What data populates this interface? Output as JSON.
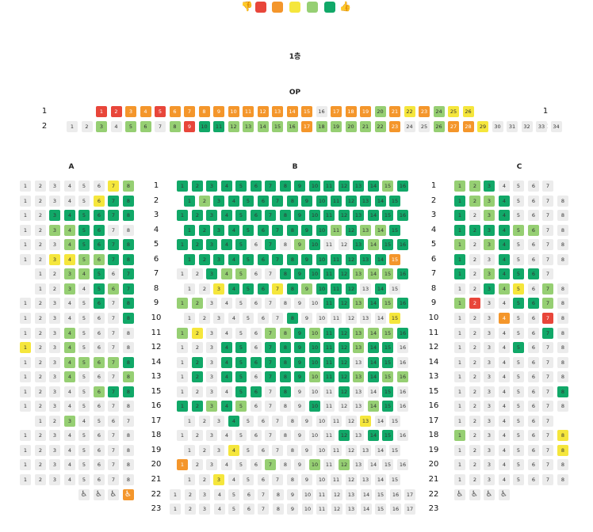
{
  "colors": {
    "0": "#ececec",
    "1": "#e8463a",
    "2": "#f4962b",
    "3": "#f5e63c",
    "4": "#96cf73",
    "5": "#11a868"
  },
  "legend": {
    "low_icon": "thumbs-down-icon",
    "high_icon": "thumbs-up-icon",
    "levels": [
      1,
      2,
      3,
      4,
      5
    ]
  },
  "floor_title": "1층",
  "op": {
    "title": "OP",
    "rows": [
      {
        "label": "1",
        "x0": 121,
        "seats": "11221222222222202224232433"
      },
      {
        "label": "2",
        "x0": 84,
        "seats": "0040440415544444244444200422300000"
      }
    ]
  },
  "sections": {
    "A": {
      "title": "A",
      "x0": 25
    },
    "B": {
      "title": "B",
      "x0": 223
    },
    "C": {
      "title": "C",
      "x0": 573
    }
  },
  "rows": [
    {
      "label": "1",
      "A": "00000034",
      "B": "5555555555555545",
      "C": "4450000"
    },
    {
      "label": "2",
      "A": "00000355",
      "B": "545555555555555",
      "C": "54450000"
    },
    {
      "label": "3",
      "A": "00555555",
      "B": "5555555555555555",
      "C": "50450000"
    },
    {
      "label": "4",
      "A": "00445500",
      "B": "555555555545445",
      "C": "55554400"
    },
    {
      "label": "5",
      "A": "00045555",
      "B": "5555505045005455",
      "C": "40450000"
    },
    {
      "label": "6",
      "A": "00334455",
      "B": "555555555555552",
      "C": "50050000"
    },
    {
      "label": "7",
      "A": "0044505",
      "B": "0054400555554445",
      "C": "5045550"
    },
    {
      "label": "8",
      "A": "0040545",
      "B": "003555354555050",
      "C": "00543040"
    },
    {
      "label": "9",
      "A": "00000505",
      "B": "4400000000554545",
      "C": "41005540"
    },
    {
      "label": "10",
      "A": "00000005",
      "B": "000000050000003",
      "C": "00020010"
    },
    {
      "label": "11",
      "A": "00040000",
      "B": "4300004454554445",
      "C": "00000050"
    },
    {
      "label": "12",
      "A": "30040000",
      "B": "0005505555554550",
      "C": "00005000"
    },
    {
      "label": "14",
      "A": "00044445",
      "B": "0505555555550550",
      "C": "00000000"
    },
    {
      "label": "13",
      "A": "00040004",
      "B": "0505505554554544",
      "C": "00000000"
    },
    {
      "label": "15",
      "A": "00000455",
      "B": "0000550500050050",
      "C": "00000005"
    },
    {
      "label": "16",
      "A": "00000000",
      "B": "5545400005000450",
      "C": "00000000"
    },
    {
      "label": "17",
      "A": "0040000",
      "B": "000500000000300",
      "C": "0000000"
    },
    {
      "label": "18",
      "A": "00000000",
      "B": "0000000000050550",
      "C": "40000003"
    },
    {
      "label": "19",
      "A": "00000000",
      "B": "000300000000000",
      "C": "00000003"
    },
    {
      "label": "20",
      "A": "00000000",
      "B": "2000004004040000",
      "C": "00000000"
    },
    {
      "label": "21",
      "A": "00000000",
      "B": "003000000000000",
      "C": "00000000"
    },
    {
      "label": "22",
      "A": "",
      "B": "00000000000000000",
      "C": ""
    },
    {
      "label": "23",
      "A": "",
      "B": "00000000000000000",
      "C": ""
    }
  ],
  "wheelchair": {
    "A": [
      "wheelchair-icon",
      "wheelchair-icon",
      "wheelchair-icon",
      "wheelchair-icon"
    ],
    "C": [
      "wheelchair-icon",
      "wheelchair-icon",
      "wheelchair-icon",
      "wheelchair-icon"
    ]
  }
}
